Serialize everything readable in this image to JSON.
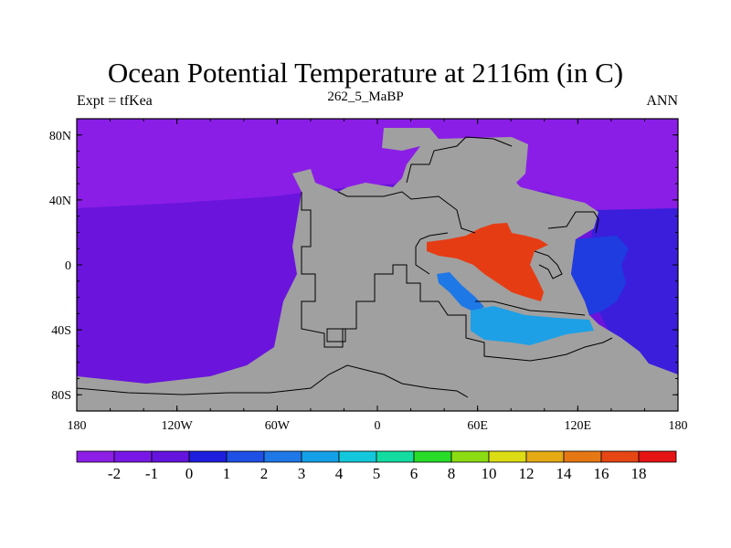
{
  "map": {
    "title": "Ocean Potential Temperature at 2116m (in C)",
    "subtitle": "262_5_MaBP",
    "left_label": "Expt = tfKea",
    "right_label": "ANN",
    "lon_ticks": [
      "180",
      "120W",
      "60W",
      "0",
      "60E",
      "120E",
      "180"
    ],
    "lat_ticks": [
      "80N",
      "40N",
      "0",
      "40S",
      "80S"
    ],
    "land_color": "#a0a0a0",
    "regions": [
      {
        "name": "ocean-west-cold",
        "color": "#6a14dc"
      },
      {
        "name": "ocean-north-cold",
        "color": "#8a1ee6"
      },
      {
        "name": "ocean-east-cold",
        "color": "#3a1edc"
      },
      {
        "name": "east-basin-warm",
        "color": "#1e3ce0"
      },
      {
        "name": "tethys-warm-sea",
        "color": "#e63c14"
      },
      {
        "name": "south-sea-cool",
        "color": "#1ea0e6"
      },
      {
        "name": "south-sea-mid",
        "color": "#1e78e6"
      }
    ]
  },
  "colorbar": {
    "colors": [
      "#8c1ee6",
      "#7818e6",
      "#6414dc",
      "#1e1edc",
      "#1e50e6",
      "#1e78e6",
      "#14a0e6",
      "#14c8dc",
      "#14dca0",
      "#28dc28",
      "#8cdc14",
      "#dcdc14",
      "#e6aa14",
      "#e67814",
      "#e64614",
      "#e61414"
    ],
    "labels": [
      "-2",
      "-1",
      "0",
      "1",
      "2",
      "3",
      "4",
      "5",
      "6",
      "8",
      "10",
      "12",
      "14",
      "16",
      "18"
    ]
  }
}
